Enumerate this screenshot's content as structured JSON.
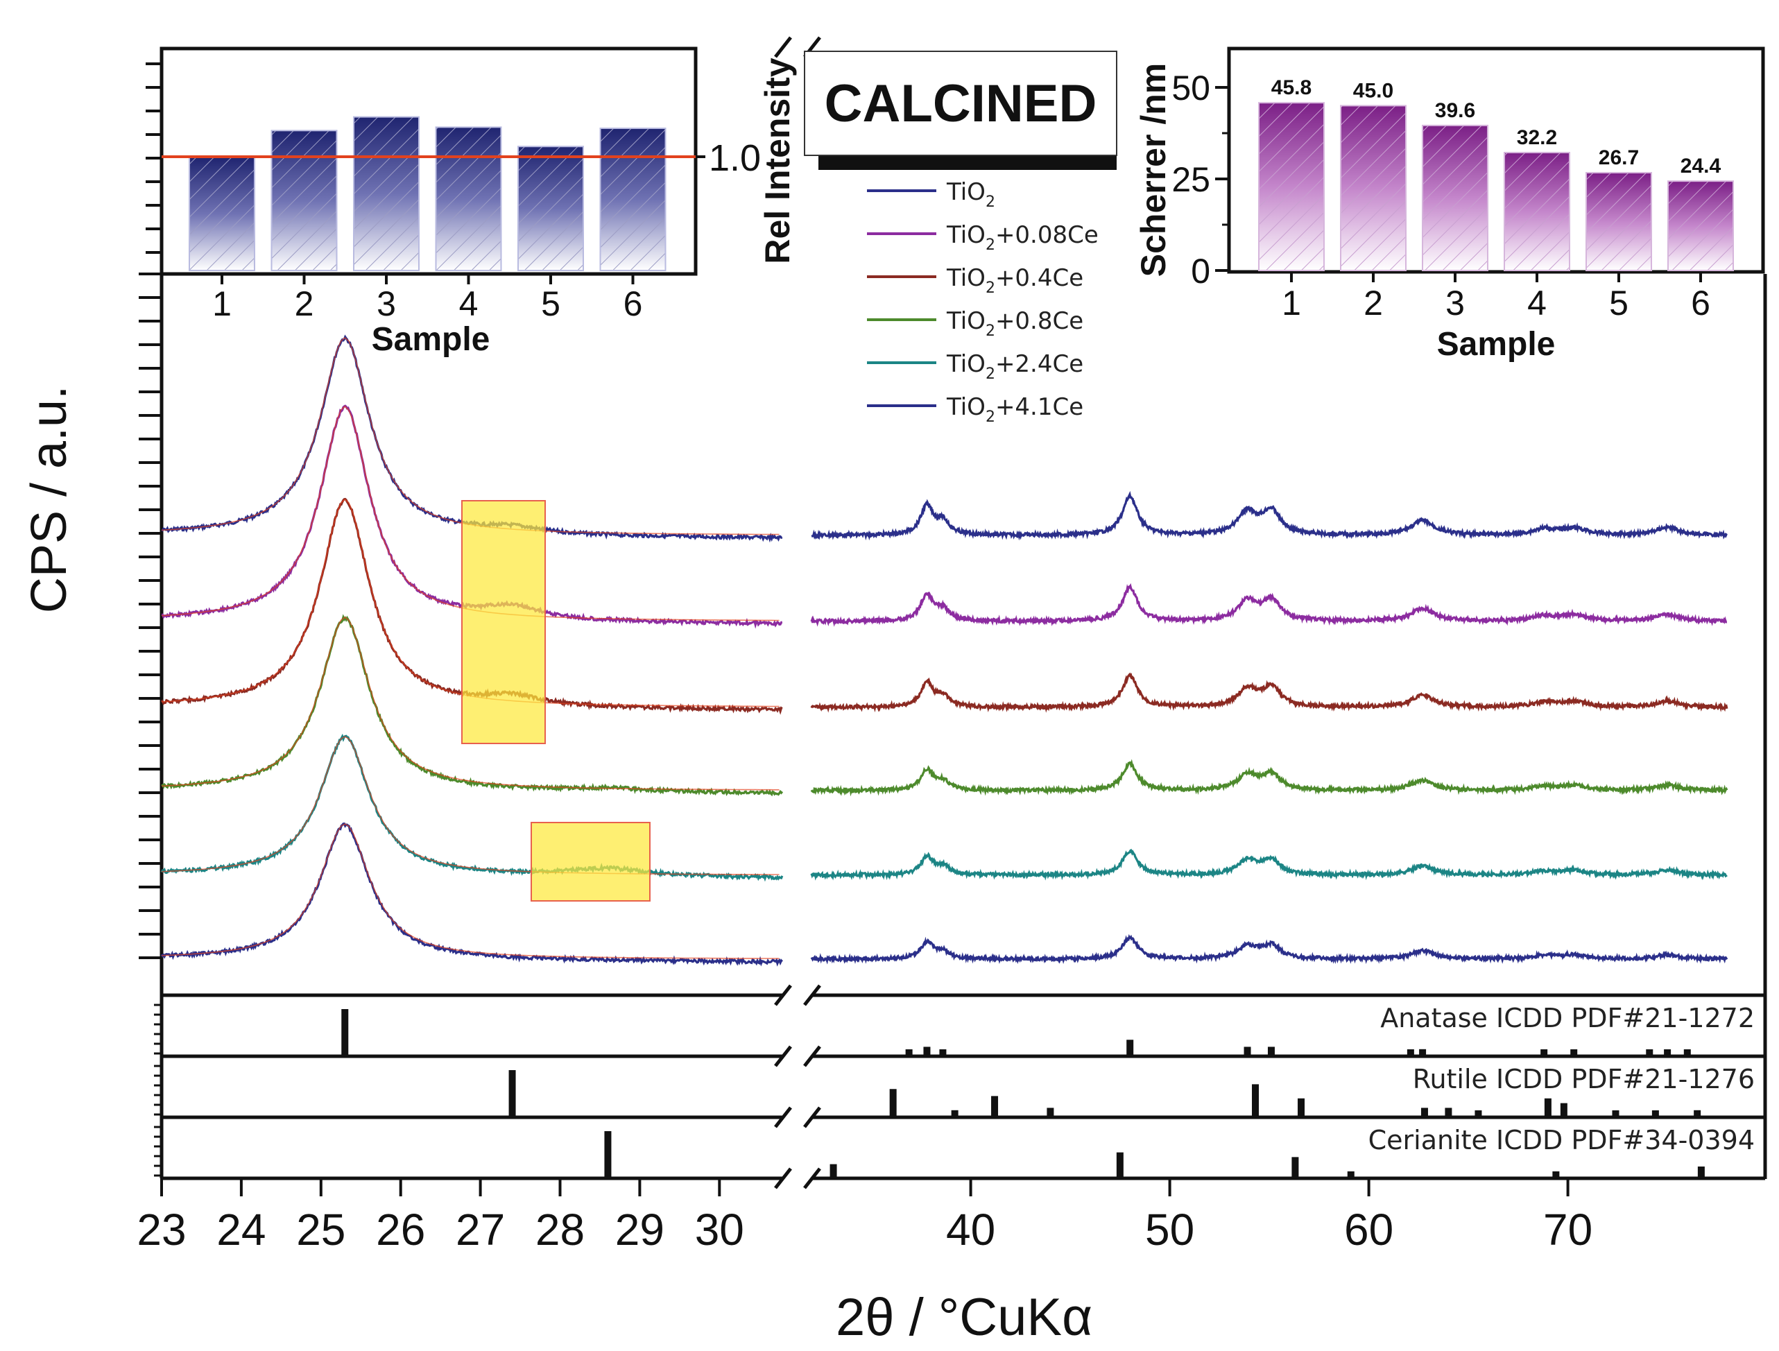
{
  "stamp": "CALCINED",
  "main_x_label": "2θ / °CuKα",
  "main_y_label": "CPS / a.u.",
  "x_ticks_left": [
    "23",
    "24",
    "25",
    "26",
    "27",
    "28",
    "29",
    "30"
  ],
  "x_ticks_right": [
    "40",
    "50",
    "60",
    "70"
  ],
  "legend": {
    "base": "TiO",
    "sub": "2",
    "items": [
      {
        "suffix": "",
        "color": "#2b2f8a"
      },
      {
        "suffix": "+0.08Ce",
        "color": "#8c2ca0"
      },
      {
        "suffix": "+0.4Ce",
        "color": "#8b2a22"
      },
      {
        "suffix": "+0.8Ce",
        "color": "#4d8a2c"
      },
      {
        "suffix": "+2.4Ce",
        "color": "#1c8585"
      },
      {
        "suffix": "+4.1Ce",
        "color": "#2b2f8a"
      }
    ]
  },
  "ref_labels": [
    "Anatase ICDD PDF#21-1272",
    "Rutile ICDD PDF#21-1276",
    "Cerianite ICDD PDF#34-0394"
  ],
  "inset_left": {
    "ylabel": "Rel Intensity",
    "xlabel": "Sample",
    "categories": [
      "1",
      "2",
      "3",
      "4",
      "5",
      "6"
    ],
    "ref_value_label": "1.0"
  },
  "inset_right": {
    "ylabel": "Scherrer /nm",
    "xlabel": "Sample",
    "categories": [
      "1",
      "2",
      "3",
      "4",
      "5",
      "6"
    ],
    "value_labels": [
      "45.8",
      "45.0",
      "39.6",
      "32.2",
      "26.7",
      "24.4"
    ],
    "y_ticks": [
      "0",
      "25",
      "50"
    ]
  },
  "chart_data": [
    {
      "type": "line",
      "title": "",
      "xlabel": "2θ / °CuKα",
      "ylabel": "CPS / a.u.",
      "x_axis_break": [
        30.9,
        32
      ],
      "xlim": [
        23,
        78
      ],
      "peak_positions_2theta": [
        25.3,
        37.8,
        38.6,
        48.0,
        53.9,
        55.1,
        62.7,
        68.8,
        70.3,
        75.0
      ],
      "series": [
        {
          "name": "TiO2",
          "offset_level": 6,
          "peak_25_height": 2.8
        },
        {
          "name": "TiO2+0.08Ce",
          "offset_level": 5,
          "peak_25_height": 3.1
        },
        {
          "name": "TiO2+0.4Ce",
          "offset_level": 4,
          "peak_25_height": 3.0
        },
        {
          "name": "TiO2+0.8Ce",
          "offset_level": 3,
          "peak_25_height": 2.5
        },
        {
          "name": "TiO2+2.4Ce",
          "offset_level": 2,
          "peak_25_height": 2.0
        },
        {
          "name": "TiO2+4.1Ce",
          "offset_level": 1,
          "peak_25_height": 1.9
        }
      ],
      "highlights": [
        {
          "x_range": [
            26.9,
            28.0
          ],
          "series": [
            "TiO2",
            "TiO2+0.08Ce",
            "TiO2+0.4Ce"
          ]
        },
        {
          "x_range": [
            27.8,
            29.2
          ],
          "series": [
            "TiO2+2.4Ce"
          ]
        }
      ],
      "references": [
        {
          "name": "Anatase ICDD PDF#21-1272",
          "peaks": [
            [
              25.3,
              100
            ],
            [
              36.9,
              10
            ],
            [
              37.8,
              20
            ],
            [
              38.6,
              10
            ],
            [
              48.0,
              35
            ],
            [
              53.9,
              20
            ],
            [
              55.1,
              20
            ],
            [
              62.1,
              10
            ],
            [
              62.7,
              15
            ],
            [
              68.8,
              8
            ],
            [
              70.3,
              8
            ],
            [
              74.1,
              4
            ],
            [
              75.0,
              10
            ],
            [
              76.0,
              6
            ]
          ]
        },
        {
          "name": "Rutile ICDD PDF#21-1276",
          "peaks": [
            [
              27.4,
              100
            ],
            [
              36.1,
              60
            ],
            [
              39.2,
              15
            ],
            [
              41.2,
              45
            ],
            [
              44.0,
              20
            ],
            [
              54.3,
              70
            ],
            [
              56.6,
              40
            ],
            [
              62.8,
              20
            ],
            [
              64.0,
              20
            ],
            [
              65.5,
              8
            ],
            [
              69.0,
              40
            ],
            [
              69.8,
              30
            ],
            [
              72.4,
              8
            ],
            [
              74.4,
              5
            ],
            [
              76.5,
              15
            ]
          ]
        },
        {
          "name": "Cerianite ICDD PDF#34-0394",
          "peaks": [
            [
              28.6,
              100
            ],
            [
              33.1,
              30
            ],
            [
              47.5,
              55
            ],
            [
              56.3,
              45
            ],
            [
              59.1,
              10
            ],
            [
              69.4,
              10
            ],
            [
              76.7,
              25
            ]
          ]
        }
      ]
    },
    {
      "type": "bar",
      "title": "",
      "xlabel": "Sample",
      "ylabel": "Rel Intensity",
      "categories": [
        "1",
        "2",
        "3",
        "4",
        "5",
        "6"
      ],
      "values": [
        1.0,
        1.23,
        1.35,
        1.26,
        1.09,
        1.25
      ],
      "reference_line": 1.0,
      "ylim": [
        0.0,
        1.8
      ]
    },
    {
      "type": "bar",
      "title": "",
      "xlabel": "Sample",
      "ylabel": "Scherrer /nm",
      "categories": [
        "1",
        "2",
        "3",
        "4",
        "5",
        "6"
      ],
      "values": [
        45.8,
        45.0,
        39.6,
        32.2,
        26.7,
        24.4
      ],
      "ylim": [
        0,
        60
      ]
    }
  ]
}
